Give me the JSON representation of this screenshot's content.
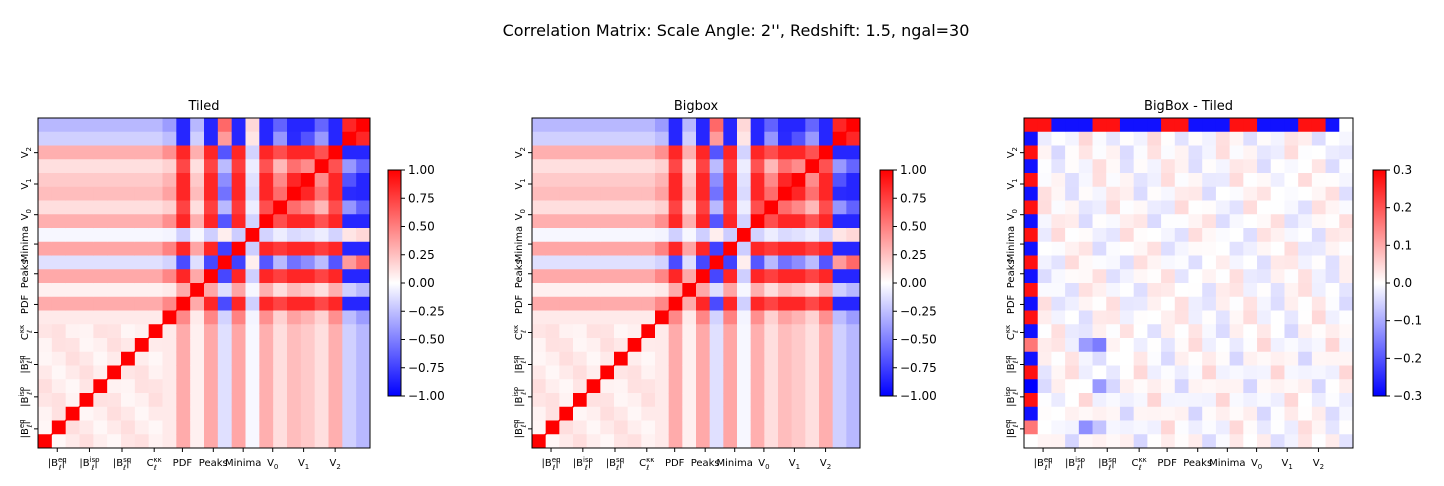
{
  "figure": {
    "suptitle": "Correlation Matrix: Scale Angle: 2'', Redshift: 1.5, ngal=30"
  },
  "chart_data": [
    {
      "type": "heatmap",
      "title": "Tiled",
      "xlabel": "",
      "ylabel": "",
      "tick_labels": [
        {
          "base": "|B",
          "sub": "ℓ",
          "sup": "eq",
          "tail": "|"
        },
        {
          "base": "|B",
          "sub": "ℓ",
          "sup": "iso",
          "tail": "|"
        },
        {
          "base": "|B",
          "sub": "ℓ",
          "sup": "sq",
          "tail": "|"
        },
        {
          "base": "C",
          "sub": "ℓ",
          "sup": "κκ",
          "tail": ""
        },
        {
          "base": "PDF",
          "sub": "",
          "sup": "",
          "tail": ""
        },
        {
          "base": "Peaks",
          "sub": "",
          "sup": "",
          "tail": ""
        },
        {
          "base": "Minima",
          "sub": "",
          "sup": "",
          "tail": ""
        },
        {
          "base": "V",
          "sub": "0",
          "sup": "",
          "tail": ""
        },
        {
          "base": "V",
          "sub": "1",
          "sup": "",
          "tail": ""
        },
        {
          "base": "V",
          "sub": "2",
          "sup": "",
          "tail": ""
        }
      ],
      "colorscale": {
        "min": -1.0,
        "max": 1.0,
        "low_color": "#0000ff",
        "mid_color": "#ffffff",
        "high_color": "#ff0000",
        "ticks": [
          "1.00",
          "0.75",
          "0.50",
          "0.25",
          "0.00",
          "−0.25",
          "−0.50",
          "−0.75",
          "−1.00"
        ]
      },
      "diagonal": 1.0
    },
    {
      "type": "heatmap",
      "title": "Bigbox",
      "xlabel": "",
      "ylabel": "",
      "tick_labels": [
        {
          "base": "|B",
          "sub": "ℓ",
          "sup": "eq",
          "tail": "|"
        },
        {
          "base": "|B",
          "sub": "ℓ",
          "sup": "iso",
          "tail": "|"
        },
        {
          "base": "|B",
          "sub": "ℓ",
          "sup": "sq",
          "tail": "|"
        },
        {
          "base": "C",
          "sub": "ℓ",
          "sup": "κκ",
          "tail": ""
        },
        {
          "base": "PDF",
          "sub": "",
          "sup": "",
          "tail": ""
        },
        {
          "base": "Peaks",
          "sub": "",
          "sup": "",
          "tail": ""
        },
        {
          "base": "Minima",
          "sub": "",
          "sup": "",
          "tail": ""
        },
        {
          "base": "V",
          "sub": "0",
          "sup": "",
          "tail": ""
        },
        {
          "base": "V",
          "sub": "1",
          "sup": "",
          "tail": ""
        },
        {
          "base": "V",
          "sub": "2",
          "sup": "",
          "tail": ""
        }
      ],
      "colorscale": {
        "min": -1.0,
        "max": 1.0,
        "low_color": "#0000ff",
        "mid_color": "#ffffff",
        "high_color": "#ff0000",
        "ticks": [
          "1.00",
          "0.75",
          "0.50",
          "0.25",
          "0.00",
          "−0.25",
          "−0.50",
          "−0.75",
          "−1.00"
        ]
      },
      "diagonal": 1.0
    },
    {
      "type": "heatmap",
      "title": "BigBox - Tiled",
      "xlabel": "",
      "ylabel": "",
      "tick_labels": [
        {
          "base": "|B",
          "sub": "ℓ",
          "sup": "eq",
          "tail": "|"
        },
        {
          "base": "|B",
          "sub": "ℓ",
          "sup": "iso",
          "tail": "|"
        },
        {
          "base": "|B",
          "sub": "ℓ",
          "sup": "sq",
          "tail": "|"
        },
        {
          "base": "C",
          "sub": "ℓ",
          "sup": "κκ",
          "tail": ""
        },
        {
          "base": "PDF",
          "sub": "",
          "sup": "",
          "tail": ""
        },
        {
          "base": "Peaks",
          "sub": "",
          "sup": "",
          "tail": ""
        },
        {
          "base": "Minima",
          "sub": "",
          "sup": "",
          "tail": ""
        },
        {
          "base": "V",
          "sub": "0",
          "sup": "",
          "tail": ""
        },
        {
          "base": "V",
          "sub": "1",
          "sup": "",
          "tail": ""
        },
        {
          "base": "V",
          "sub": "2",
          "sup": "",
          "tail": ""
        }
      ],
      "colorscale": {
        "min": -0.3,
        "max": 0.3,
        "low_color": "#0000ff",
        "mid_color": "#ffffff",
        "high_color": "#ff0000",
        "ticks": [
          "0.3",
          "0.2",
          "0.1",
          "0.0",
          "−0.1",
          "−0.2",
          "−0.3"
        ]
      },
      "diagonal": 0.0
    }
  ]
}
